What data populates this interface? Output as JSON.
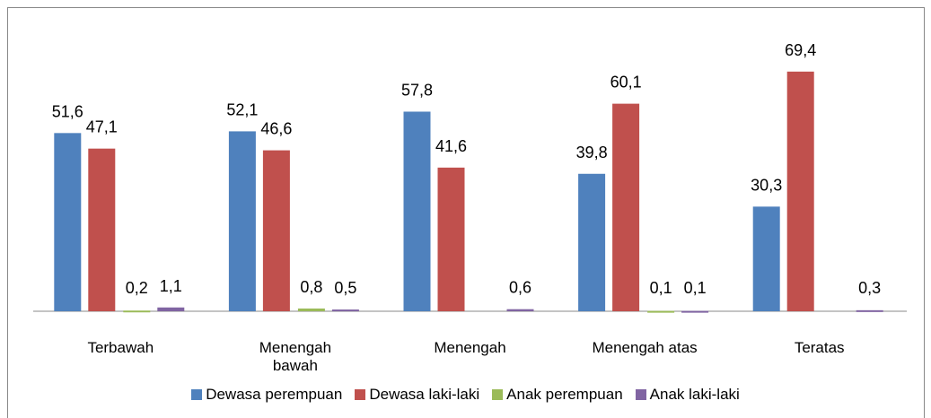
{
  "chart_data": {
    "type": "bar",
    "categories": [
      "Terbawah",
      "Menengah\nbawah",
      "Menengah",
      "Menengah  atas",
      "Teratas"
    ],
    "series": [
      {
        "name": "Dewasa perempuan",
        "color": "#4f81bd",
        "values": [
          51.6,
          52.1,
          57.8,
          39.8,
          30.3
        ],
        "value_labels": [
          "51,6",
          "52,1",
          "57,8",
          "39,8",
          "30,3"
        ]
      },
      {
        "name": "Dewasa laki-laki",
        "color": "#c0504d",
        "values": [
          47.1,
          46.6,
          41.6,
          60.1,
          69.4
        ],
        "value_labels": [
          "47,1",
          "46,6",
          "41,6",
          "60,1",
          "69,4"
        ]
      },
      {
        "name": "Anak perempuan",
        "color": "#9bbb59",
        "values": [
          0.2,
          0.8,
          null,
          0.1,
          null
        ],
        "value_labels": [
          "0,2",
          "0,8",
          null,
          "0,1",
          null
        ]
      },
      {
        "name": "Anak laki-laki",
        "color": "#8064a2",
        "values": [
          1.1,
          0.5,
          0.6,
          0.1,
          0.3
        ],
        "value_labels": [
          "1,1",
          "0,5",
          "0,6",
          "0,1",
          "0,3"
        ]
      }
    ],
    "ylim": [
      0,
      80
    ],
    "legend": "bottom"
  }
}
